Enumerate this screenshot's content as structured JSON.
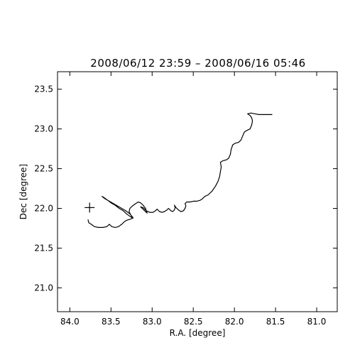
{
  "chart_data": {
    "type": "line",
    "title": "2008/06/12 23:59 – 2008/06/16 05:46",
    "xlabel": "R.A. [degree]",
    "ylabel": "Dec [degree]",
    "xlim": [
      84.15,
      80.75
    ],
    "ylim": [
      20.7,
      23.72
    ],
    "xticks": [
      84.0,
      83.5,
      83.0,
      82.5,
      82.0,
      81.5,
      81.0
    ],
    "xtick_labels": [
      "84.0",
      "83.5",
      "83.0",
      "82.5",
      "82.0",
      "81.5",
      "81.0"
    ],
    "yticks": [
      21.0,
      21.5,
      22.0,
      22.5,
      23.0,
      23.5
    ],
    "ytick_labels": [
      "21.0",
      "21.5",
      "22.0",
      "22.5",
      "23.0",
      "23.5"
    ],
    "grid": false,
    "marker": {
      "ra": 83.76,
      "dec": 22.01,
      "symbol": "+"
    },
    "series": [
      {
        "points": [
          [
            83.78,
            21.86
          ],
          [
            83.77,
            21.82
          ],
          [
            83.74,
            21.8
          ],
          [
            83.7,
            21.77
          ],
          [
            83.65,
            21.76
          ],
          [
            83.6,
            21.76
          ],
          [
            83.55,
            21.77
          ],
          [
            83.52,
            21.8
          ],
          [
            83.49,
            21.77
          ],
          [
            83.45,
            21.76
          ],
          [
            83.41,
            21.77
          ],
          [
            83.37,
            21.8
          ],
          [
            83.34,
            21.83
          ],
          [
            83.31,
            21.85
          ],
          [
            83.28,
            21.86
          ],
          [
            83.25,
            21.87
          ],
          [
            83.23,
            21.88
          ],
          [
            83.27,
            21.93
          ],
          [
            83.32,
            21.97
          ],
          [
            83.37,
            22.0
          ],
          [
            83.42,
            22.03
          ],
          [
            83.47,
            22.06
          ],
          [
            83.52,
            22.09
          ],
          [
            83.57,
            22.12
          ],
          [
            83.61,
            22.15
          ],
          [
            83.59,
            22.14
          ],
          [
            83.55,
            22.11
          ],
          [
            83.5,
            22.07
          ],
          [
            83.45,
            22.04
          ],
          [
            83.4,
            22.0
          ],
          [
            83.35,
            21.97
          ],
          [
            83.31,
            21.93
          ],
          [
            83.27,
            21.9
          ],
          [
            83.24,
            21.88
          ],
          [
            83.26,
            21.92
          ],
          [
            83.28,
            21.96
          ],
          [
            83.27,
            22.0
          ],
          [
            83.24,
            22.03
          ],
          [
            83.2,
            22.06
          ],
          [
            83.17,
            22.08
          ],
          [
            83.14,
            22.07
          ],
          [
            83.11,
            22.04
          ],
          [
            83.08,
            22.0
          ],
          [
            83.07,
            21.96
          ],
          [
            83.06,
            21.94
          ],
          [
            83.09,
            21.97
          ],
          [
            83.12,
            22.0
          ],
          [
            83.14,
            22.02
          ],
          [
            83.11,
            22.01
          ],
          [
            83.07,
            21.97
          ],
          [
            83.03,
            21.95
          ],
          [
            82.99,
            21.95
          ],
          [
            82.96,
            21.97
          ],
          [
            82.94,
            21.99
          ],
          [
            82.91,
            21.96
          ],
          [
            82.88,
            21.95
          ],
          [
            82.85,
            21.96
          ],
          [
            82.82,
            21.98
          ],
          [
            82.8,
            22.0
          ],
          [
            82.77,
            21.97
          ],
          [
            82.75,
            21.96
          ],
          [
            82.73,
            21.98
          ],
          [
            82.72,
            22.01
          ],
          [
            82.73,
            22.04
          ],
          [
            82.71,
            22.01
          ],
          [
            82.68,
            21.98
          ],
          [
            82.65,
            21.96
          ],
          [
            82.62,
            21.97
          ],
          [
            82.6,
            22.0
          ],
          [
            82.59,
            22.03
          ],
          [
            82.6,
            22.06
          ],
          [
            82.58,
            22.08
          ],
          [
            82.54,
            22.08
          ],
          [
            82.5,
            22.09
          ],
          [
            82.46,
            22.09
          ],
          [
            82.42,
            22.1
          ],
          [
            82.39,
            22.12
          ],
          [
            82.36,
            22.15
          ],
          [
            82.32,
            22.17
          ],
          [
            82.27,
            22.22
          ],
          [
            82.23,
            22.28
          ],
          [
            82.2,
            22.34
          ],
          [
            82.18,
            22.4
          ],
          [
            82.17,
            22.46
          ],
          [
            82.16,
            22.52
          ],
          [
            82.17,
            22.58
          ],
          [
            82.14,
            22.6
          ],
          [
            82.1,
            22.61
          ],
          [
            82.07,
            22.63
          ],
          [
            82.05,
            22.68
          ],
          [
            82.04,
            22.74
          ],
          [
            82.02,
            22.8
          ],
          [
            81.99,
            22.82
          ],
          [
            81.95,
            22.83
          ],
          [
            81.92,
            22.86
          ],
          [
            81.9,
            22.91
          ],
          [
            81.88,
            22.96
          ],
          [
            81.85,
            22.98
          ],
          [
            81.81,
            23.0
          ],
          [
            81.79,
            23.05
          ],
          [
            81.78,
            23.1
          ],
          [
            81.79,
            23.14
          ],
          [
            81.81,
            23.17
          ],
          [
            81.84,
            23.19
          ],
          [
            81.8,
            23.2
          ],
          [
            81.75,
            23.19
          ],
          [
            81.7,
            23.18
          ],
          [
            81.65,
            23.18
          ],
          [
            81.58,
            23.18
          ],
          [
            81.54,
            23.18
          ]
        ]
      }
    ]
  }
}
